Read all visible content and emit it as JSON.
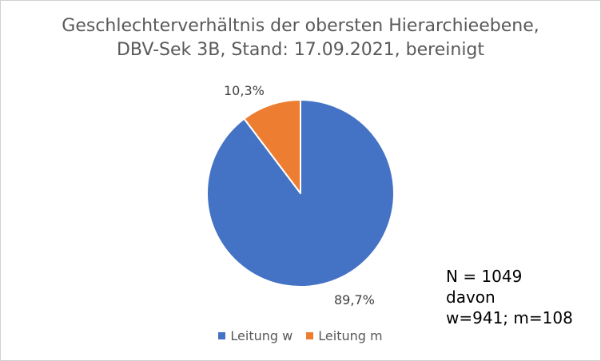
{
  "chart_data": {
    "type": "pie",
    "title": [
      "Geschlechterverhältnis der obersten Hierarchieebene,",
      "DBV-Sek 3B, Stand: 17.09.2021, bereinigt"
    ],
    "slices": [
      {
        "name": "Leitung w",
        "value": 89.7,
        "label": "89,7%",
        "color": "#4472C4"
      },
      {
        "name": "Leitung m",
        "value": 10.3,
        "label": "10,3%",
        "color": "#ED7D31"
      }
    ],
    "legend_position": "bottom"
  },
  "annotation": {
    "lines": [
      "N = 1049",
      "davon",
      "w=941; m=108"
    ]
  }
}
